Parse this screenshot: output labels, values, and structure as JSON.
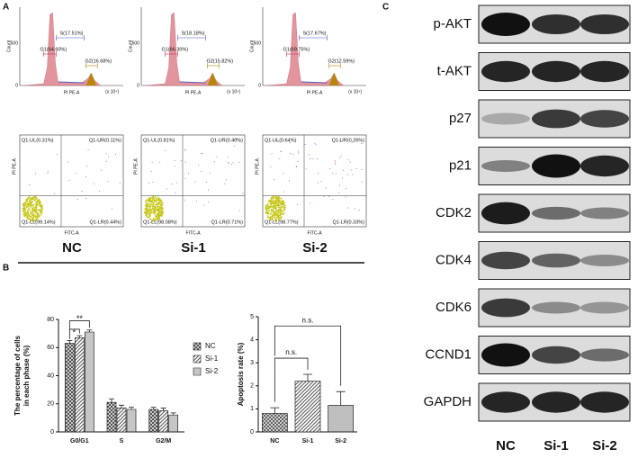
{
  "panel_labels": [
    "A",
    "B",
    "C"
  ],
  "groups": [
    "NC",
    "Si-1",
    "Si-2"
  ],
  "histograms": {
    "y_label": "Count",
    "x_label": "PI PE-A",
    "x_unit": "(x 10⁴)",
    "yticks": [
      "0",
      "500"
    ],
    "panels": [
      {
        "S": "S(17.51%)",
        "G1": "G1(64.60%)",
        "G2": "G2(16.68%)"
      },
      {
        "S": "S(18.18%)",
        "G1": "G1(66.30%)",
        "G2": "G2(15.82%)"
      },
      {
        "S": "S(17.67%)",
        "G1": "G1(69.75%)",
        "G2": "G2(12.59%)"
      }
    ]
  },
  "dot_plots": {
    "x_label": "FITC-A",
    "y_label": "PI PE-A",
    "panels": [
      {
        "UL": "Q1-UL(0.31%)",
        "UR": "Q1-UR(0.11%)",
        "LL": "Q1-LL(99.14%)",
        "LR": "Q1-LR(0.44%)"
      },
      {
        "UL": "Q1-UL(0.81%)",
        "UR": "Q1-UR(0.40%)",
        "LL": "Q1-LL(98.08%)",
        "LR": "Q1-LR(0.71%)"
      },
      {
        "UL": "Q1-UL(0.64%)",
        "UR": "Q1-UR(0.26%)",
        "LL": "Q1-LL(98.77%)",
        "LR": "Q1-LR(0.33%)"
      }
    ]
  },
  "chart_data": [
    {
      "type": "bar",
      "y_label": [
        "The percentage of cells",
        "in each phase (%)"
      ],
      "categories": [
        "G0/G1",
        "S",
        "G2/M"
      ],
      "series": [
        {
          "name": "NC",
          "color": "#444444",
          "values": [
            63,
            21,
            16
          ],
          "errors": [
            2,
            2.5,
            1.5
          ]
        },
        {
          "name": "Si-1",
          "color": "#555555",
          "values": [
            67,
            17,
            15
          ],
          "errors": [
            1.5,
            2,
            2
          ]
        },
        {
          "name": "Si-2",
          "color": "#666666",
          "values": [
            71,
            16,
            12
          ],
          "errors": [
            1.5,
            1.5,
            1.5
          ]
        }
      ],
      "ylim": [
        0,
        80
      ],
      "yticks": [
        0,
        20,
        40,
        60,
        80
      ],
      "annotations": [
        "*",
        "**"
      ]
    },
    {
      "type": "bar",
      "y_label": [
        "Apoptosis rate (%)"
      ],
      "categories": [
        "NC",
        "Si-1",
        "Si-2"
      ],
      "values": [
        0.8,
        2.2,
        1.15
      ],
      "errors": [
        0.25,
        0.3,
        0.6
      ],
      "color": "#555555",
      "ylim": [
        0,
        5
      ],
      "yticks": [
        0,
        1,
        2,
        3,
        4,
        5
      ],
      "annotations": [
        "n.s.",
        "n.s."
      ]
    }
  ],
  "blot": {
    "proteins": [
      "p-AKT",
      "t-AKT",
      "p27",
      "p21",
      "CDK2",
      "CDK4",
      "CDK6",
      "CCND1",
      "GAPDH"
    ],
    "lanes": [
      "NC",
      "Si-1",
      "Si-2"
    ]
  }
}
